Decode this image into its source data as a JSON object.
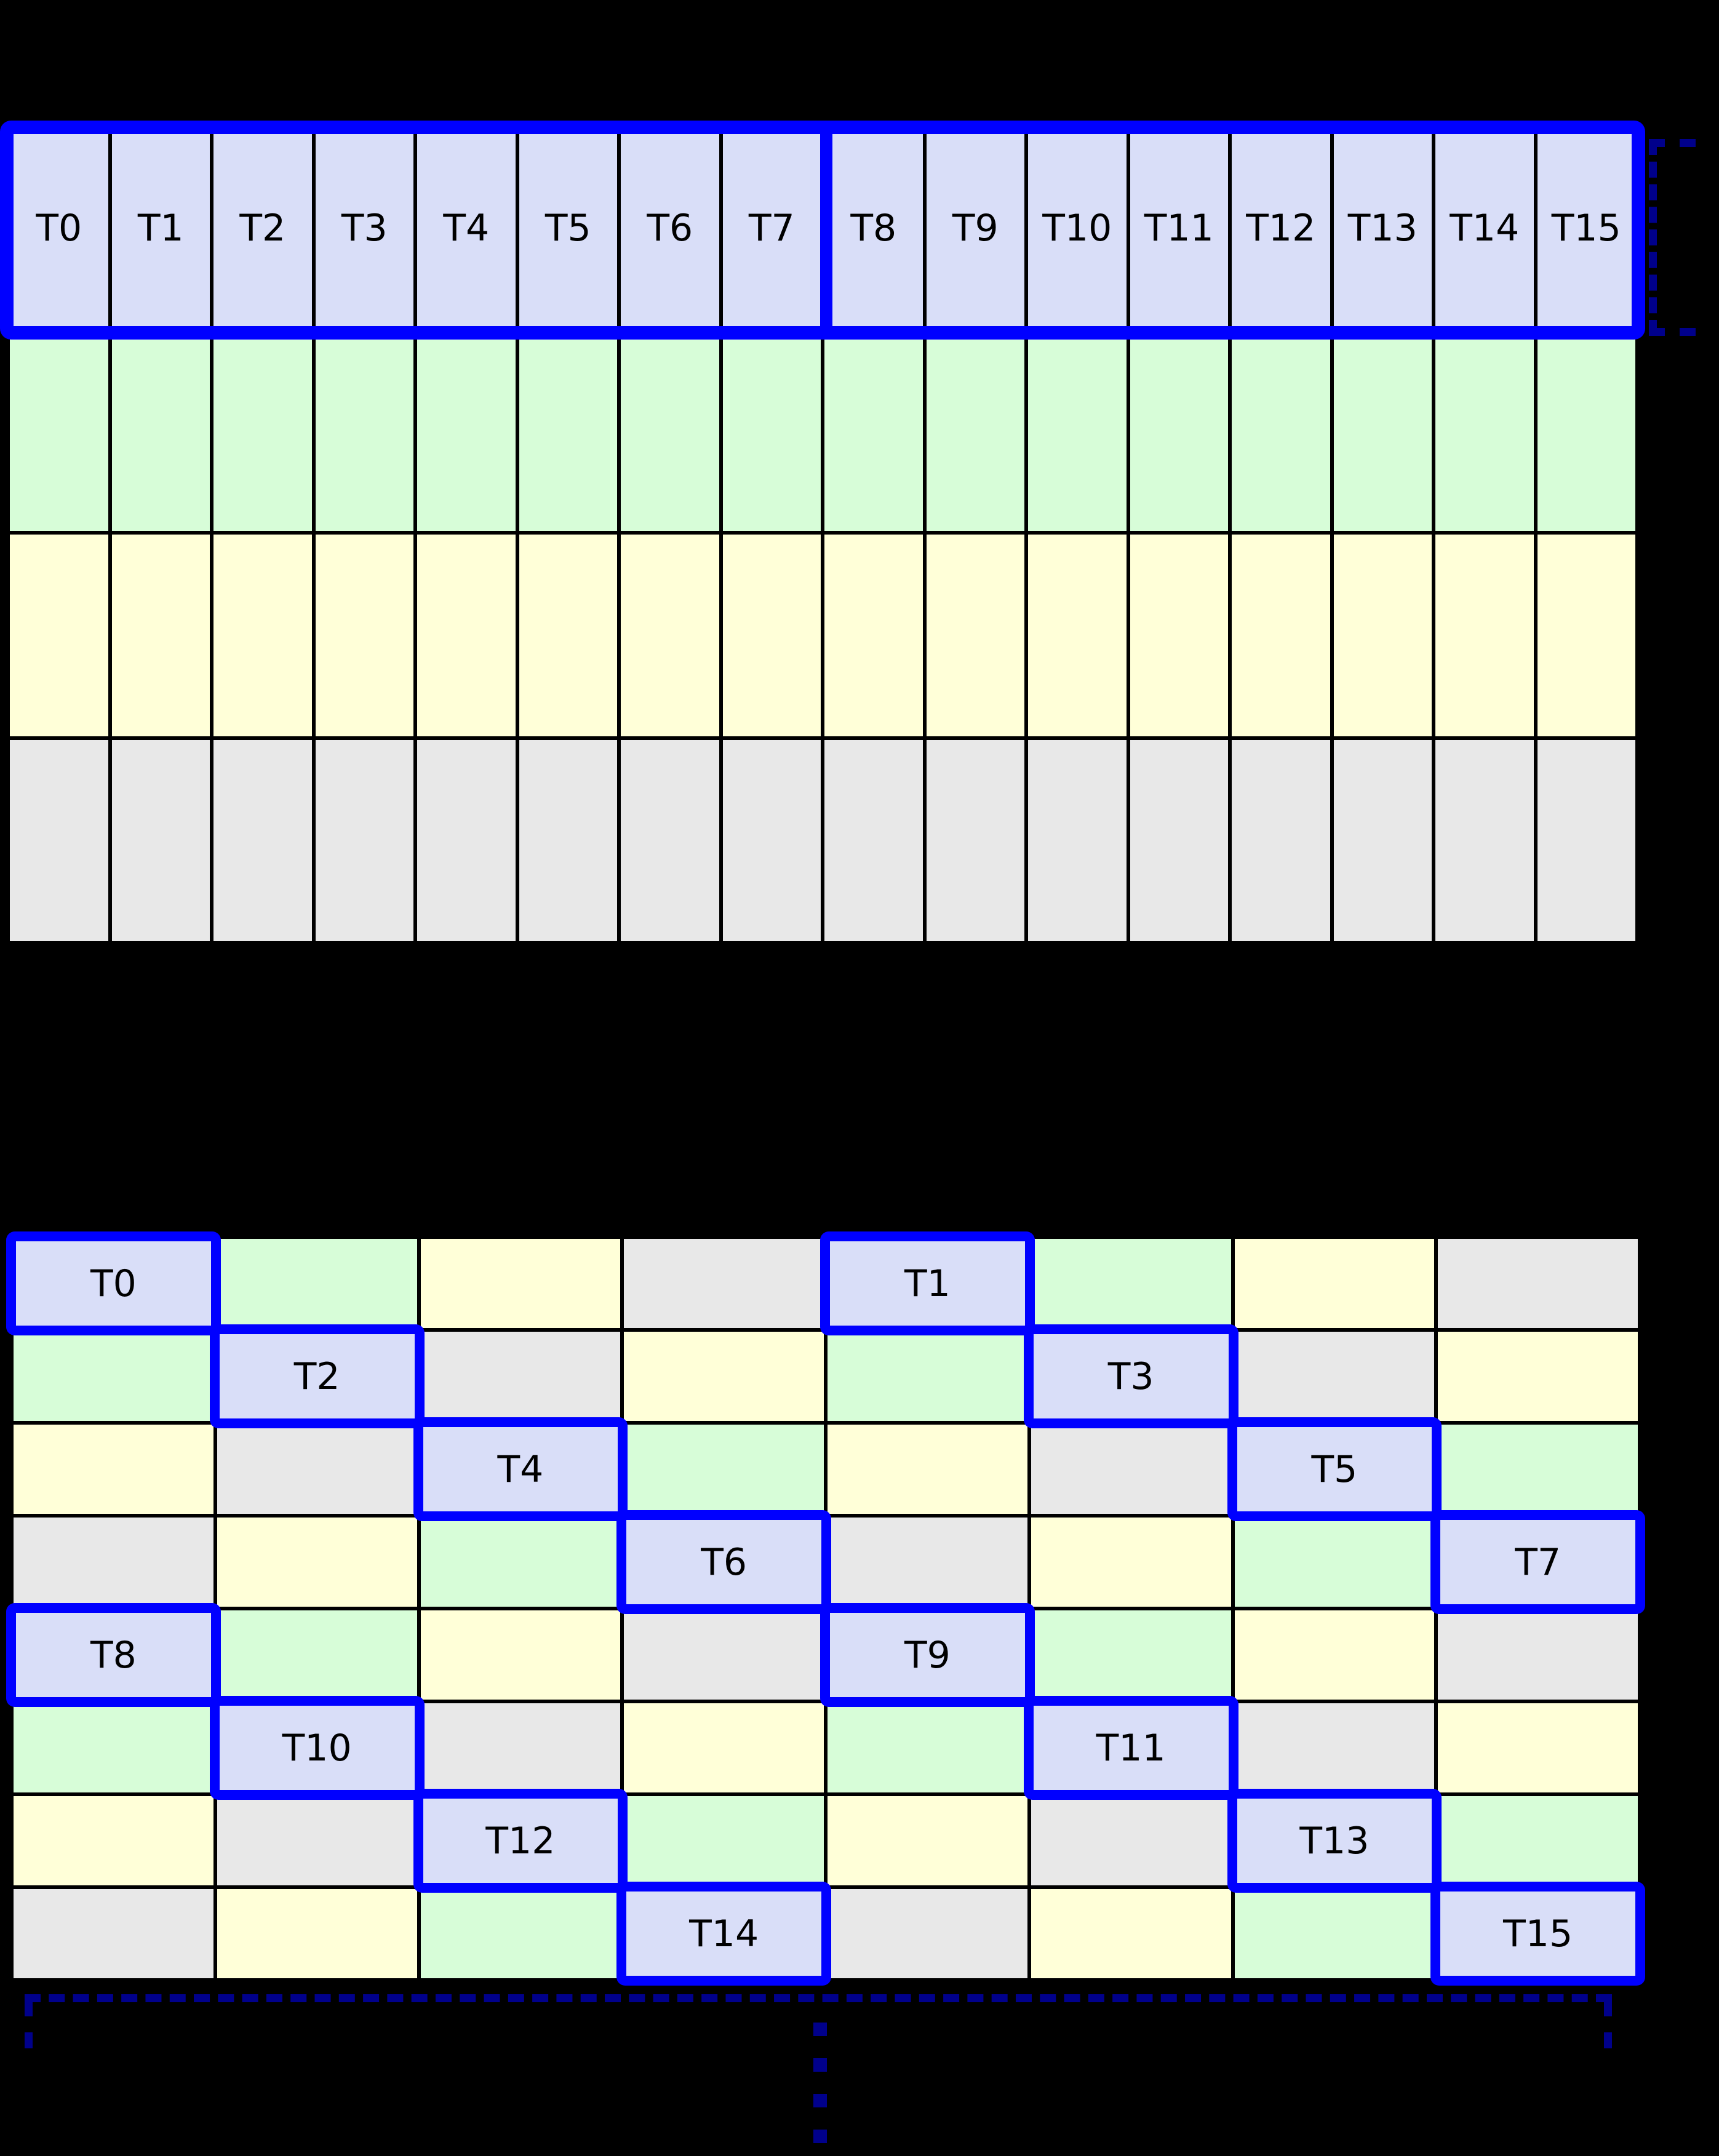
{
  "colors": {
    "background": "#000000",
    "thread": "#D9DEF8",
    "green": "#D7FDD8",
    "yellow": "#FFFFD8",
    "gray": "#E8E8E8",
    "highlight": "#0000FF",
    "bracket": "#00008B",
    "label_text": "#000000",
    "gridline": "#000000"
  },
  "top_grid": {
    "row_labels": [
      "T0",
      "T1",
      "T2",
      "T3",
      "T4",
      "T5",
      "T6",
      "T7",
      "T8",
      "T9",
      "T10",
      "T11",
      "T12",
      "T13",
      "T14",
      "T15"
    ],
    "other_rows": [
      "green",
      "yellow",
      "gray"
    ],
    "columns": 16,
    "half_warp_split_after": "T7"
  },
  "bottom_grid": {
    "columns": 8,
    "rows": [
      [
        {
          "c": "thread",
          "label": "T0"
        },
        {
          "c": "green"
        },
        {
          "c": "yellow"
        },
        {
          "c": "gray"
        },
        {
          "c": "thread",
          "label": "T1"
        },
        {
          "c": "green"
        },
        {
          "c": "yellow"
        },
        {
          "c": "gray"
        }
      ],
      [
        {
          "c": "green"
        },
        {
          "c": "thread",
          "label": "T2"
        },
        {
          "c": "gray"
        },
        {
          "c": "yellow"
        },
        {
          "c": "green"
        },
        {
          "c": "thread",
          "label": "T3"
        },
        {
          "c": "gray"
        },
        {
          "c": "yellow"
        }
      ],
      [
        {
          "c": "yellow"
        },
        {
          "c": "gray"
        },
        {
          "c": "thread",
          "label": "T4"
        },
        {
          "c": "green"
        },
        {
          "c": "yellow"
        },
        {
          "c": "gray"
        },
        {
          "c": "thread",
          "label": "T5"
        },
        {
          "c": "green"
        }
      ],
      [
        {
          "c": "gray"
        },
        {
          "c": "yellow"
        },
        {
          "c": "green"
        },
        {
          "c": "thread",
          "label": "T6"
        },
        {
          "c": "gray"
        },
        {
          "c": "yellow"
        },
        {
          "c": "green"
        },
        {
          "c": "thread",
          "label": "T7"
        }
      ],
      [
        {
          "c": "thread",
          "label": "T8"
        },
        {
          "c": "green"
        },
        {
          "c": "yellow"
        },
        {
          "c": "gray"
        },
        {
          "c": "thread",
          "label": "T9"
        },
        {
          "c": "green"
        },
        {
          "c": "yellow"
        },
        {
          "c": "gray"
        }
      ],
      [
        {
          "c": "green"
        },
        {
          "c": "thread",
          "label": "T10"
        },
        {
          "c": "gray"
        },
        {
          "c": "yellow"
        },
        {
          "c": "green"
        },
        {
          "c": "thread",
          "label": "T11"
        },
        {
          "c": "gray"
        },
        {
          "c": "yellow"
        }
      ],
      [
        {
          "c": "yellow"
        },
        {
          "c": "gray"
        },
        {
          "c": "thread",
          "label": "T12"
        },
        {
          "c": "green"
        },
        {
          "c": "yellow"
        },
        {
          "c": "gray"
        },
        {
          "c": "thread",
          "label": "T13"
        },
        {
          "c": "green"
        }
      ],
      [
        {
          "c": "gray"
        },
        {
          "c": "yellow"
        },
        {
          "c": "green"
        },
        {
          "c": "thread",
          "label": "T14"
        },
        {
          "c": "gray"
        },
        {
          "c": "yellow"
        },
        {
          "c": "green"
        },
        {
          "c": "thread",
          "label": "T15"
        }
      ]
    ]
  },
  "ellipsis": {
    "dot_count": 4
  }
}
